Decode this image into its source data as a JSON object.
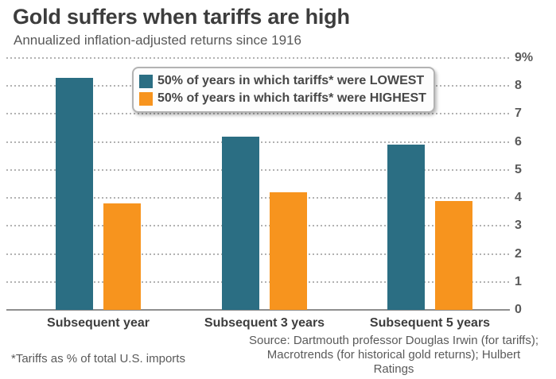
{
  "header": {
    "title": "Gold suffers when tariffs are high",
    "subtitle": "Annualized inflation-adjusted returns since 1916"
  },
  "chart_data": {
    "type": "bar",
    "categories": [
      "Subsequent year",
      "Subsequent 3 years",
      "Subsequent 5 years"
    ],
    "series": [
      {
        "name": "50% of years in which tariffs* were LOWEST",
        "color": "#2b6e83",
        "values": [
          8.3,
          6.2,
          5.9
        ]
      },
      {
        "name": "50% of years in which tariffs* were HIGHEST",
        "color": "#f7941e",
        "values": [
          3.8,
          4.2,
          3.9
        ]
      }
    ],
    "title": "Gold suffers when tariffs are high",
    "subtitle": "Annualized inflation-adjusted returns since 1916",
    "xlabel": "",
    "ylabel": "",
    "ylim": [
      0,
      9
    ],
    "yticks": [
      {
        "value": 9,
        "label": "9%"
      },
      {
        "value": 8,
        "label": "8"
      },
      {
        "value": 7,
        "label": "7"
      },
      {
        "value": 6,
        "label": "6"
      },
      {
        "value": 5,
        "label": "5"
      },
      {
        "value": 4,
        "label": "4"
      },
      {
        "value": 3,
        "label": "3"
      },
      {
        "value": 2,
        "label": "2"
      },
      {
        "value": 1,
        "label": "1"
      },
      {
        "value": 0,
        "label": "0"
      }
    ],
    "grid": "horizontal-dotted",
    "legend_position": "top-center"
  },
  "colors": {
    "lowest_series": "#2b6e83",
    "highest_series": "#f7941e",
    "title_text": "#3d3d3d",
    "muted_text": "#5a5a5a",
    "gridline": "#b2b2b2",
    "axis_line": "#8f8f8f"
  },
  "footnote": "*Tariffs as % of total U.S. imports",
  "source": {
    "line1": "Source: Dartmouth professor Douglas Irwin (for tariffs);",
    "line2": "Macrotrends (for historical gold returns); Hulbert Ratings"
  }
}
